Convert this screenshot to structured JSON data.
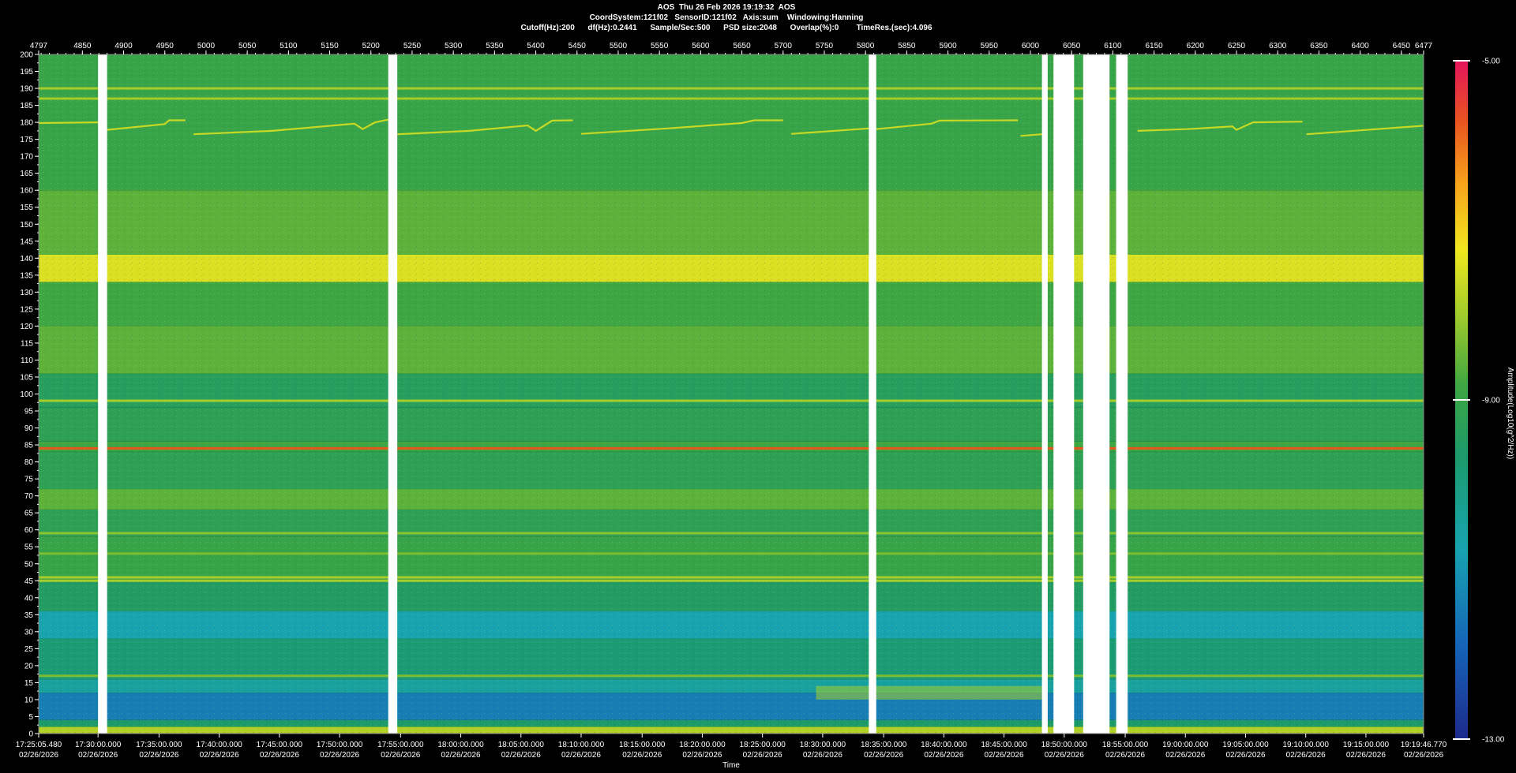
{
  "header": {
    "line1": "AOS  Thu 26 Feb 2026 19:19:32  AOS",
    "line2": "CoordSystem:121f02   SensorID:121f02   Axis:sum    Windowing:Hanning",
    "line3": "Cutoff(Hz):200      df(Hz):0.2441      Sample/Sec:500      PSD size:2048      Overlap(%):0        TimeRes.(sec):4.096"
  },
  "chart_data": {
    "type": "heatmap",
    "title": "",
    "xlabel": "Time",
    "colorbar_label": "Amplitude(Log10(g^2/Hz))",
    "colorbar_ticks": [
      "-5.00",
      "-9.00",
      "-13.00"
    ],
    "clim": [
      -13,
      -5
    ],
    "ylim": [
      0,
      200
    ],
    "y_ticks": [
      200,
      195,
      190,
      185,
      180,
      175,
      170,
      165,
      160,
      155,
      150,
      145,
      140,
      135,
      130,
      125,
      120,
      115,
      110,
      105,
      100,
      95,
      90,
      85,
      80,
      75,
      70,
      65,
      60,
      55,
      50,
      45,
      40,
      35,
      30,
      25,
      20,
      15,
      10,
      5,
      0
    ],
    "segment_range": [
      4797,
      6477
    ],
    "segment_ticks": [
      4797,
      4850,
      4900,
      4950,
      5000,
      5050,
      5100,
      5150,
      5200,
      5250,
      5300,
      5350,
      5400,
      5450,
      5500,
      5550,
      5600,
      5650,
      5700,
      5750,
      5800,
      5850,
      5900,
      5950,
      6000,
      6050,
      6100,
      6150,
      6200,
      6250,
      6300,
      6350,
      6400,
      6450,
      6477
    ],
    "time_ticks": [
      {
        "segment": 4797,
        "time": "17:25:05.480",
        "date": "02/26/2026"
      },
      {
        "segment": 4869,
        "time": "17:30:00.000",
        "date": "02/26/2026"
      },
      {
        "segment": 4943,
        "time": "17:35:00.000",
        "date": "02/26/2026"
      },
      {
        "segment": 5016,
        "time": "17:40:00.000",
        "date": "02/26/2026"
      },
      {
        "segment": 5089,
        "time": "17:45:00.000",
        "date": "02/26/2026"
      },
      {
        "segment": 5162,
        "time": "17:50:00.000",
        "date": "02/26/2026"
      },
      {
        "segment": 5236,
        "time": "17:55:00.000",
        "date": "02/26/2026"
      },
      {
        "segment": 5309,
        "time": "18:00:00.000",
        "date": "02/26/2026"
      },
      {
        "segment": 5382,
        "time": "18:05:00.000",
        "date": "02/26/2026"
      },
      {
        "segment": 5455,
        "time": "18:10:00.000",
        "date": "02/26/2026"
      },
      {
        "segment": 5529,
        "time": "18:15:00.000",
        "date": "02/26/2026"
      },
      {
        "segment": 5602,
        "time": "18:20:00.000",
        "date": "02/26/2026"
      },
      {
        "segment": 5675,
        "time": "18:25:00.000",
        "date": "02/26/2026"
      },
      {
        "segment": 5748,
        "time": "18:30:00.000",
        "date": "02/26/2026"
      },
      {
        "segment": 5822,
        "time": "18:35:00.000",
        "date": "02/26/2026"
      },
      {
        "segment": 5895,
        "time": "18:40:00.000",
        "date": "02/26/2026"
      },
      {
        "segment": 5968,
        "time": "18:45:00.000",
        "date": "02/26/2026"
      },
      {
        "segment": 6041,
        "time": "18:50:00.000",
        "date": "02/26/2026"
      },
      {
        "segment": 6115,
        "time": "18:55:00.000",
        "date": "02/26/2026"
      },
      {
        "segment": 6188,
        "time": "19:00:00.000",
        "date": "02/26/2026"
      },
      {
        "segment": 6261,
        "time": "19:05:00.000",
        "date": "02/26/2026"
      },
      {
        "segment": 6334,
        "time": "19:10:00.000",
        "date": "02/26/2026"
      },
      {
        "segment": 6407,
        "time": "19:15:00.000",
        "date": "02/26/2026"
      },
      {
        "segment": 6477,
        "time": "19:19:46.770",
        "date": "02/26/2026"
      }
    ],
    "data_gaps": [
      [
        4869,
        4880
      ],
      [
        5221,
        5232
      ],
      [
        5804,
        5813
      ],
      [
        6014,
        6021
      ],
      [
        6028,
        6053
      ],
      [
        6064,
        6096
      ],
      [
        6104,
        6118
      ]
    ],
    "background_bands": [
      {
        "f": [
          0,
          2
        ],
        "level": -8.8
      },
      {
        "f": [
          2,
          4
        ],
        "level": -10.2
      },
      {
        "f": [
          4,
          12
        ],
        "level": -11.6
      },
      {
        "f": [
          12,
          16
        ],
        "level": -10.8
      },
      {
        "f": [
          16,
          28
        ],
        "level": -10.3
      },
      {
        "f": [
          28,
          36
        ],
        "level": -11.0
      },
      {
        "f": [
          36,
          45
        ],
        "level": -10.1
      },
      {
        "f": [
          45,
          58
        ],
        "level": -9.7
      },
      {
        "f": [
          58,
          66
        ],
        "level": -9.9
      },
      {
        "f": [
          66,
          72
        ],
        "level": -9.4
      },
      {
        "f": [
          72,
          83
        ],
        "level": -9.9
      },
      {
        "f": [
          83,
          86
        ],
        "level": -9.6
      },
      {
        "f": [
          86,
          96
        ],
        "level": -9.9
      },
      {
        "f": [
          96,
          106
        ],
        "level": -10.0
      },
      {
        "f": [
          106,
          120
        ],
        "level": -9.4
      },
      {
        "f": [
          120,
          133
        ],
        "level": -9.6
      },
      {
        "f": [
          133,
          141
        ],
        "level": -8.4
      },
      {
        "f": [
          141,
          160
        ],
        "level": -9.4
      },
      {
        "f": [
          160,
          200
        ],
        "level": -9.7
      }
    ],
    "tones": [
      {
        "freq": 84,
        "level": -6.6
      },
      {
        "freq": 98,
        "level": -8.9
      },
      {
        "freq": 46,
        "level": -8.9
      },
      {
        "freq": 45,
        "level": -8.9
      },
      {
        "freq": 187,
        "level": -8.9
      },
      {
        "freq": 190,
        "level": -8.9
      },
      {
        "freq": 59,
        "level": -9.1
      },
      {
        "freq": 53,
        "level": -9.2
      },
      {
        "freq": 17,
        "level": -9.2
      }
    ],
    "drifting_tone": {
      "level": -8.6,
      "segments": [
        [
          [
            4797,
            179.8
          ],
          [
            4869,
            180.0
          ]
        ],
        [
          [
            4880,
            177.8
          ],
          [
            4950,
            179.5
          ],
          [
            4955,
            180.6
          ],
          [
            4975,
            180.6
          ]
        ],
        [
          [
            4985,
            176.5
          ],
          [
            5080,
            177.5
          ],
          [
            5180,
            179.6
          ],
          [
            5190,
            178.0
          ],
          [
            5205,
            180.0
          ],
          [
            5221,
            180.8
          ]
        ],
        [
          [
            5232,
            176.5
          ],
          [
            5320,
            177.5
          ],
          [
            5390,
            179.1
          ],
          [
            5400,
            177.5
          ],
          [
            5420,
            180.5
          ],
          [
            5445,
            180.6
          ]
        ],
        [
          [
            5455,
            176.6
          ],
          [
            5560,
            178.2
          ],
          [
            5650,
            179.8
          ],
          [
            5665,
            180.6
          ],
          [
            5700,
            180.6
          ]
        ],
        [
          [
            5710,
            176.6
          ],
          [
            5804,
            178.2
          ]
        ],
        [
          [
            5813,
            178.0
          ],
          [
            5880,
            179.6
          ],
          [
            5890,
            180.5
          ],
          [
            5985,
            180.6
          ]
        ],
        [
          [
            5988,
            176.0
          ],
          [
            6014,
            176.5
          ]
        ],
        [
          [
            6130,
            177.5
          ],
          [
            6190,
            178.0
          ],
          [
            6245,
            178.8
          ],
          [
            6250,
            177.8
          ],
          [
            6270,
            180.0
          ],
          [
            6330,
            180.2
          ]
        ],
        [
          [
            6335,
            176.5
          ],
          [
            6477,
            179.0
          ]
        ]
      ]
    },
    "low_freq_hump": {
      "segments": [
        5740,
        6014
      ],
      "f": [
        10,
        14
      ],
      "level": -8.9
    }
  }
}
